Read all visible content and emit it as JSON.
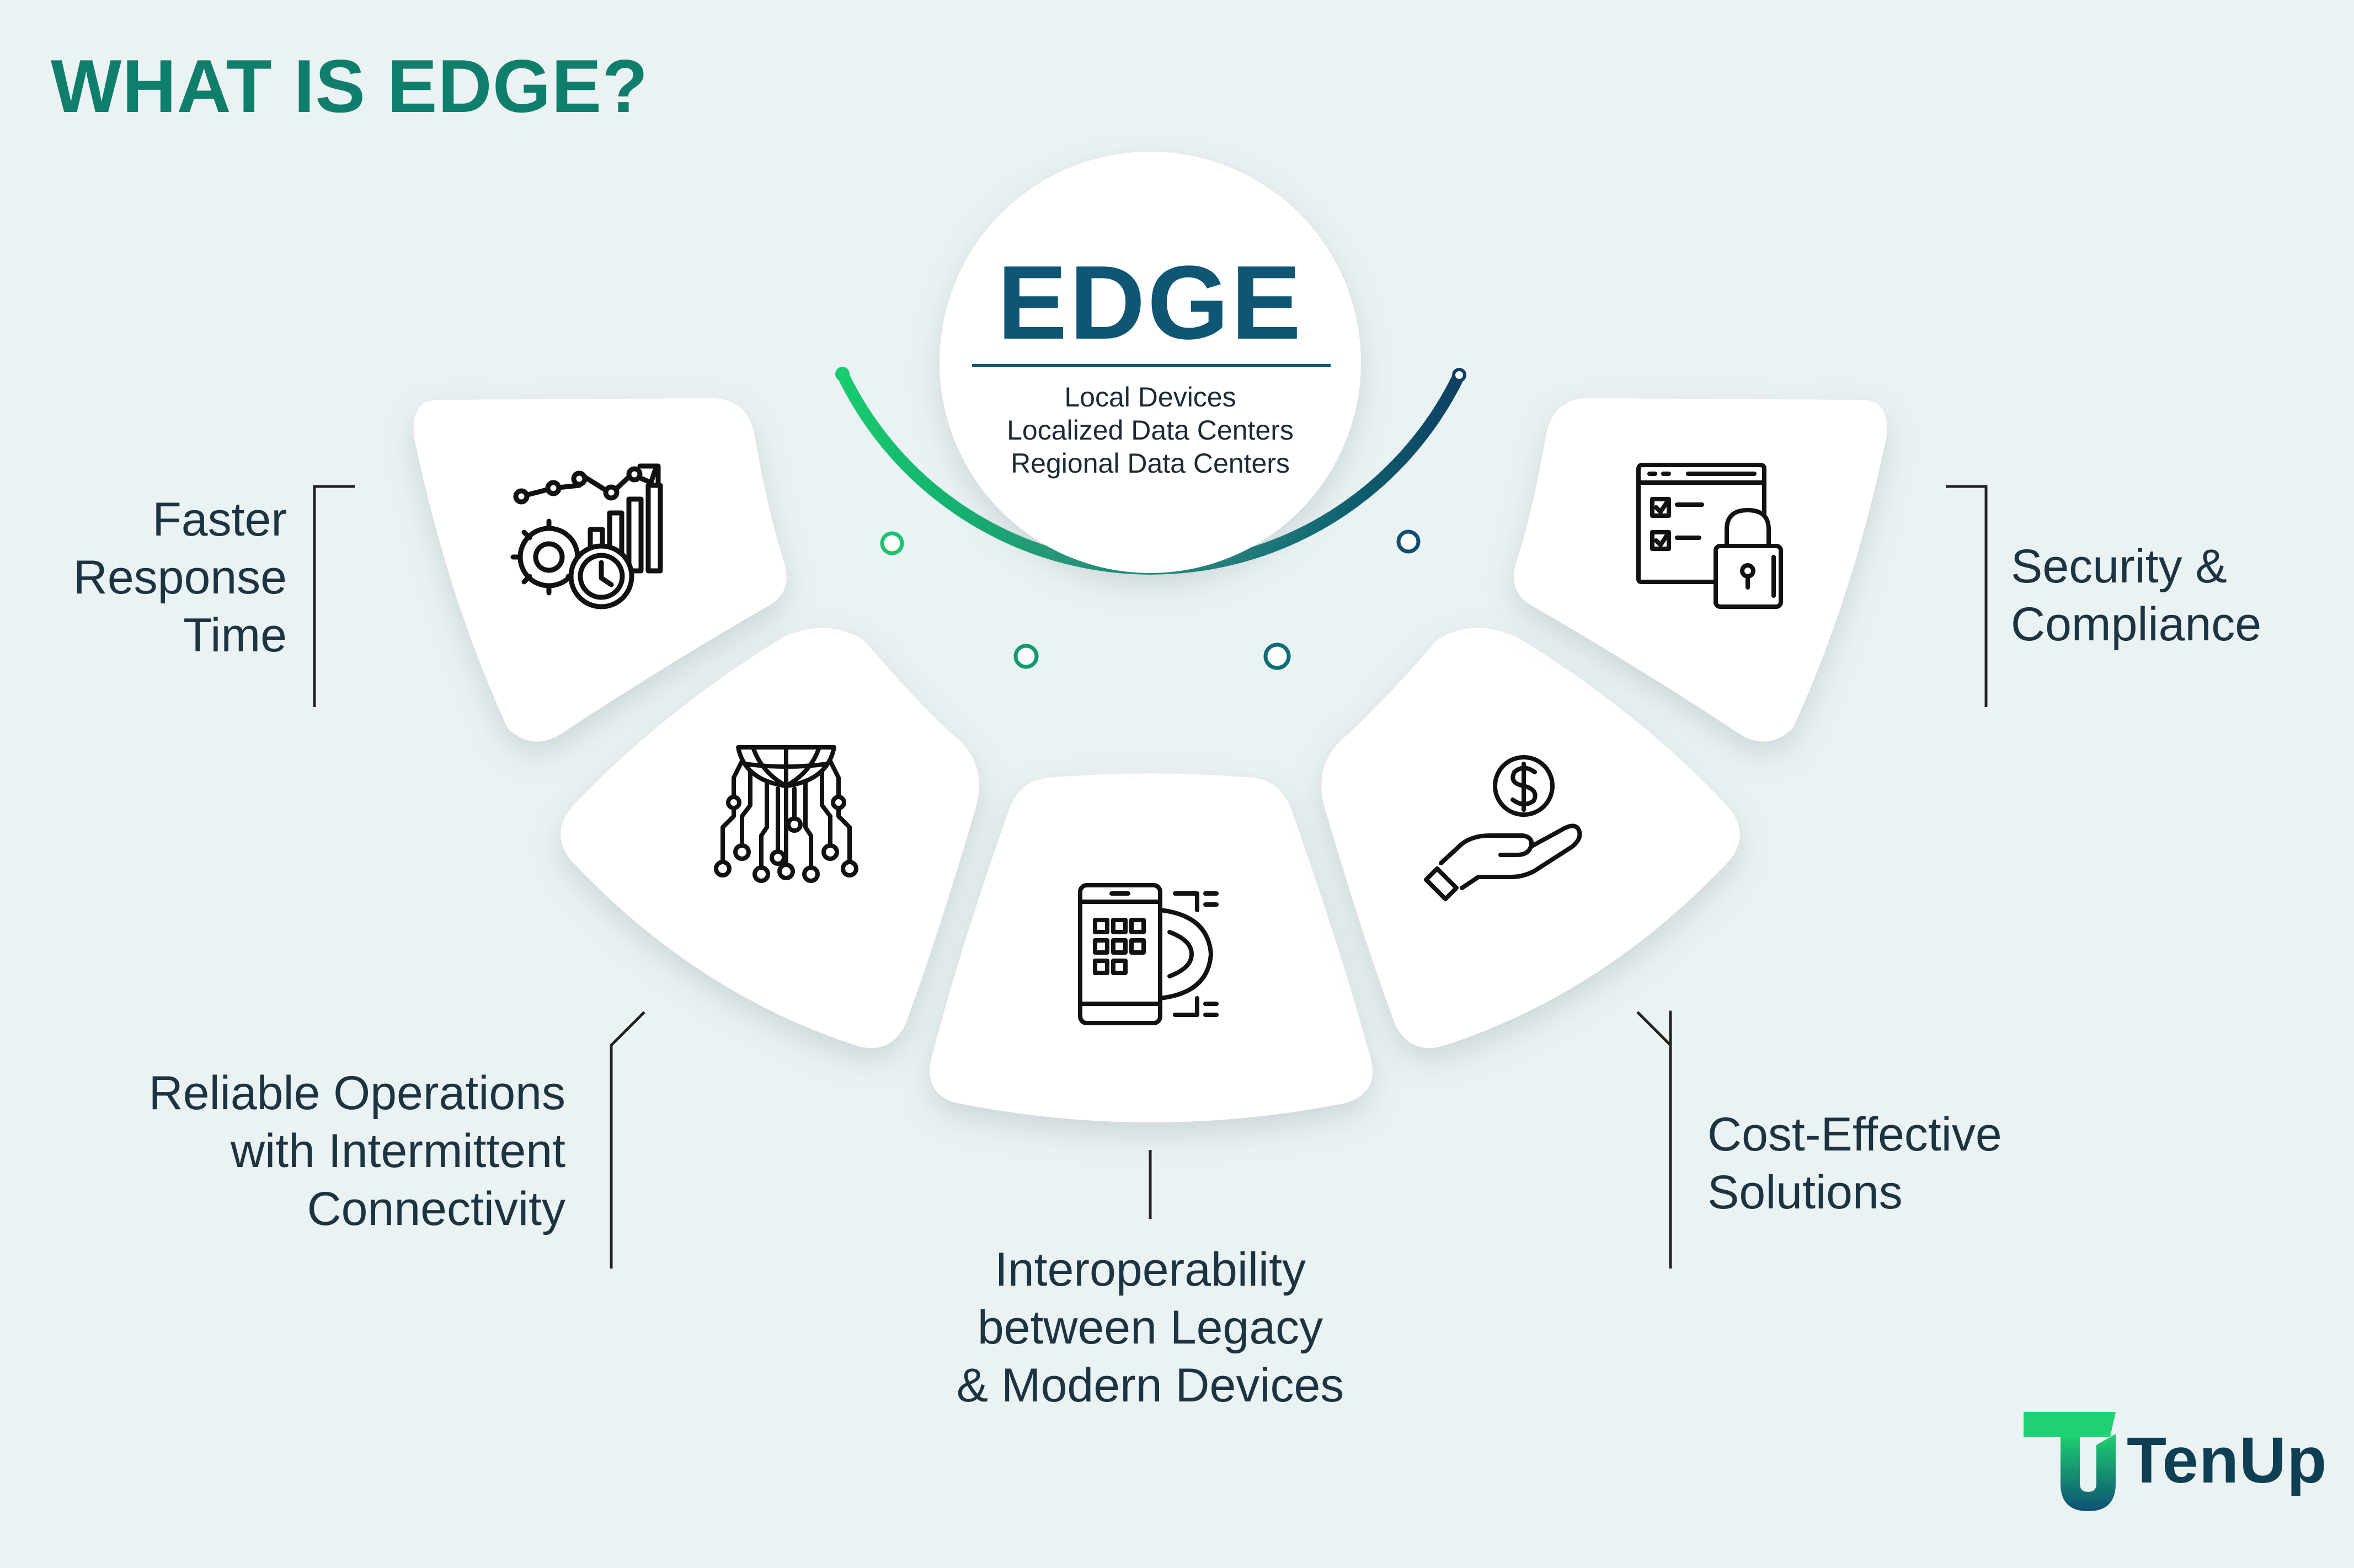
{
  "page": {
    "title": "WHAT IS EDGE?"
  },
  "hub": {
    "title": "EDGE",
    "items": [
      "Local Devices",
      "Localized Data Centers",
      "Regional Data Centers"
    ]
  },
  "features": [
    {
      "label_lines": [
        "Faster",
        "Response",
        "Time"
      ],
      "icon": "gear-clock-chart-icon"
    },
    {
      "label_lines": [
        "Reliable Operations",
        "with Intermittent",
        "Connectivity"
      ],
      "icon": "globe-circuit-icon"
    },
    {
      "label_lines": [
        "Interoperability",
        "between Legacy",
        "& Modern Devices"
      ],
      "icon": "phone-chip-icon"
    },
    {
      "label_lines": [
        "Cost-Effective",
        "Solutions"
      ],
      "icon": "hand-coin-icon"
    },
    {
      "label_lines": [
        "Security &",
        "Compliance"
      ],
      "icon": "browser-lock-icon"
    }
  ],
  "brand": {
    "name": "TenUp",
    "colors": {
      "green": "#1fd172",
      "blue": "#0e4f73"
    }
  },
  "colors": {
    "background": "#ebf2f3",
    "title": "#0f7f6c",
    "hub_title": "#0e5673",
    "arc_green": "#18cc6e",
    "arc_teal": "#0f8a72",
    "arc_blue": "#0e4f73"
  }
}
